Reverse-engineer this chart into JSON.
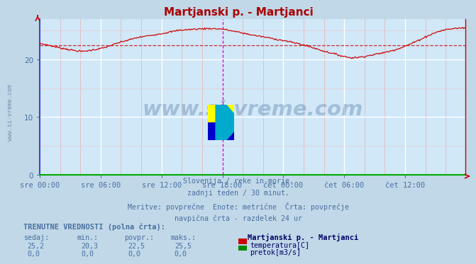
{
  "title": "Martjanski p. - Martjanci",
  "title_color": "#aa0000",
  "bg_color": "#d0e8f8",
  "outer_bg_color": "#c0d8e8",
  "grid_major_color": "#ffffff",
  "grid_minor_color": "#e8b0b0",
  "grid_minor_h_color": "#e8c8c8",
  "x_labels": [
    "sre 00:00",
    "sre 06:00",
    "sre 12:00",
    "sre 18:00",
    "čet 00:00",
    "čet 06:00",
    "čet 12:00"
  ],
  "x_tick_positions": [
    0,
    72,
    144,
    216,
    288,
    360,
    432
  ],
  "n_points": 504,
  "xlim": [
    0,
    503
  ],
  "ylim": [
    0,
    27
  ],
  "yticks": [
    0,
    10,
    20
  ],
  "temp_color": "#cc0000",
  "avg_value": 22.5,
  "avg_line_color": "#cc0000",
  "vline_pos": 216,
  "vline_color": "#cc00cc",
  "bottom_spine_color": "#00aa00",
  "left_spine_color": "#4444cc",
  "right_spine_color": "#cc0000",
  "watermark_text": "www.si-vreme.com",
  "watermark_color": "#3a5f90",
  "watermark_alpha": 0.3,
  "subtitle_lines": [
    "Slovenija / reke in morje.",
    "zadnji teden / 30 minut.",
    "Meritve: povprečne  Enote: metrične  Črta: povprečje",
    "navpična črta - razdelek 24 ur"
  ],
  "subtitle_color": "#4a6fa0",
  "footer_bold": "TRENUTNE VREDNOSTI (polna črta):",
  "footer_color": "#4a6fa0",
  "col_headers": [
    "sedaj:",
    "min.:",
    "povpr.:",
    "maks.:"
  ],
  "temp_row": [
    "25,2",
    "20,3",
    "22,5",
    "25,5"
  ],
  "flow_row": [
    "0,0",
    "0,0",
    "0,0",
    "0,0"
  ],
  "legend_title": "Martjanski p. - Martjanci",
  "legend_temp_label": "temperatura[C]",
  "legend_flow_label": "pretok[m3/s]",
  "legend_temp_color": "#cc0000",
  "legend_flow_color": "#008800",
  "logo_colors": [
    "#ffff00",
    "#00ccff",
    "#ffcc00",
    "#0000aa",
    "#00aacc",
    "#000088"
  ],
  "tick_label_color": "#4a6fa0",
  "tick_label_fontsize": 7.5
}
